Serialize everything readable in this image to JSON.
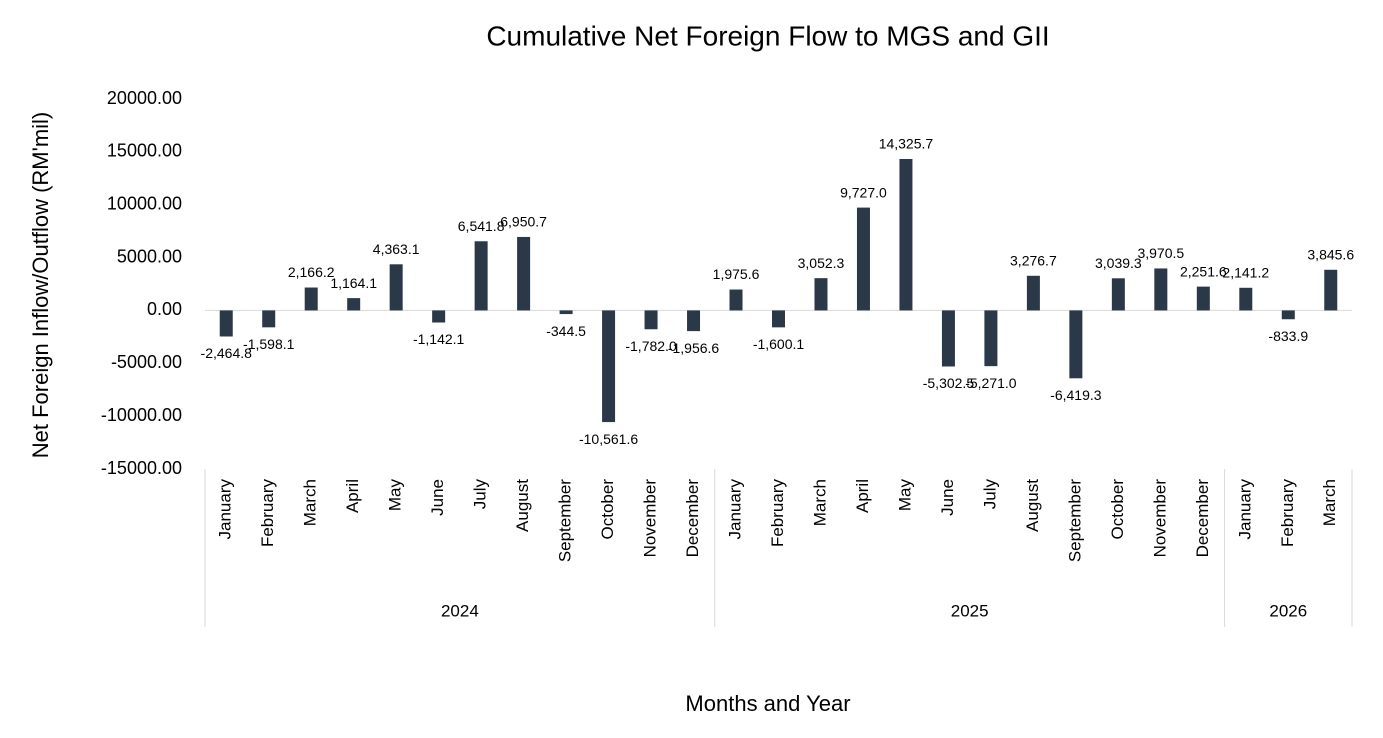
{
  "chart_data": {
    "type": "bar",
    "title": "Cumulative Net Foreign Flow to MGS and GII",
    "x_label": "Months and Year",
    "y_label": "Net Foreign Inflow/Outflow (RM'mil)",
    "color": "#2a3847",
    "groups": [
      {
        "label": "2024",
        "categories": [
          "January",
          "February",
          "March",
          "April",
          "May",
          "June",
          "July",
          "August",
          "September",
          "October",
          "November",
          "December"
        ]
      },
      {
        "label": "2025",
        "categories": [
          "January",
          "February",
          "March",
          "April",
          "May",
          "June",
          "July",
          "August",
          "September",
          "October",
          "November",
          "December"
        ]
      },
      {
        "label": "2026",
        "categories": [
          "January",
          "February",
          "March"
        ]
      }
    ],
    "values": [
      -2464.8,
      -1598.1,
      2166.2,
      1164.1,
      4363.1,
      -1142.1,
      6541.8,
      6950.7,
      -344.5,
      -10561.6,
      -1782.0,
      -1956.6,
      1975.6,
      -1600.1,
      3052.3,
      9727.0,
      14325.7,
      -5302.5,
      -5271.0,
      3276.7,
      -6419.3,
      3039.3,
      3970.5,
      2251.6,
      2141.2,
      -833.9,
      3845.6
    ],
    "value_labels": [
      "-2,464.8",
      "-1,598.1",
      "2,166.2",
      "1,164.1",
      "4,363.1",
      "-1,142.1",
      "6,541.8",
      "6,950.7",
      "-344.5",
      "-10,561.6",
      "-1,782.0",
      "-1,956.6",
      "1,975.6",
      "-1,600.1",
      "3,052.3",
      "9,727.0",
      "14,325.7",
      "-5,302.5",
      "-5,271.0",
      "3,276.7",
      "-6,419.3",
      "3,039.3",
      "3,970.5",
      "2,251.6",
      "2,141.2",
      "-833.9",
      "3,845.6"
    ],
    "ylim": [
      -15000,
      20000
    ],
    "yticks": [
      {
        "value": -15000,
        "label": "-15000.00"
      },
      {
        "value": -10000,
        "label": "-10000.00"
      },
      {
        "value": -5000,
        "label": "-5000.00"
      },
      {
        "value": 0,
        "label": "0.00"
      },
      {
        "value": 5000,
        "label": "5000.00"
      },
      {
        "value": 10000,
        "label": "10000.00"
      },
      {
        "value": 15000,
        "label": "15000.00"
      },
      {
        "value": 20000,
        "label": "20000.00"
      }
    ]
  }
}
